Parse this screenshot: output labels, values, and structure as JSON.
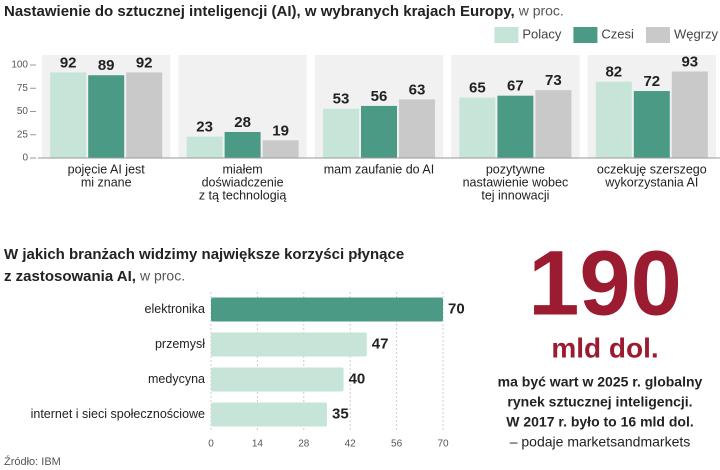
{
  "chart_data": [
    {
      "type": "bar",
      "title": "Nastawienie do sztucznej inteligencji (AI), w wybranych krajach Europy,",
      "subtitle": "w proc.",
      "categories": [
        [
          "pojęcie AI jest",
          "mi znane"
        ],
        [
          "miałem",
          "doświadczenie",
          "z tą technologią"
        ],
        [
          "mam zaufanie do AI"
        ],
        [
          "pozytywne",
          "nastawienie wobec",
          "tej innowacji"
        ],
        [
          "oczekuję szerszego",
          "wykorzystania AI"
        ]
      ],
      "series": [
        {
          "name": "Polacy",
          "color": "#c6e4d7",
          "values": [
            92,
            23,
            53,
            65,
            82
          ]
        },
        {
          "name": "Czesi",
          "color": "#4a9a86",
          "values": [
            89,
            28,
            56,
            67,
            72
          ]
        },
        {
          "name": "Węgrzy",
          "color": "#c9c9c9",
          "values": [
            92,
            19,
            63,
            73,
            93
          ]
        }
      ],
      "ylim": [
        0,
        100
      ],
      "yticks": [
        0,
        25,
        50,
        75,
        100
      ],
      "legend": "top-right"
    },
    {
      "type": "hbar",
      "title": [
        "W jakich branżach widzimy największe korzyści płynące",
        "z zastosowania AI,"
      ],
      "subtitle": "w proc.",
      "categories": [
        "elektronika",
        "przemysł",
        "medycyna",
        "internet i sieci społecznościowe"
      ],
      "values": [
        70,
        47,
        40,
        35
      ],
      "colors": [
        "#4a9a86",
        "#c6e4d7",
        "#c6e4d7",
        "#c6e4d7"
      ],
      "xlim": [
        0,
        70
      ],
      "xticks": [
        0,
        14,
        28,
        42,
        56,
        70
      ]
    }
  ],
  "callout": {
    "number": "190",
    "unit": "mld dol.",
    "text": [
      "ma być wart w 2025 r. globalny",
      "rynek sztucznej inteligencji.",
      "W 2017 r. było to 16 mld dol."
    ],
    "source_note": "– podaje marketsandmarkets"
  },
  "source": "Źródło: IBM"
}
